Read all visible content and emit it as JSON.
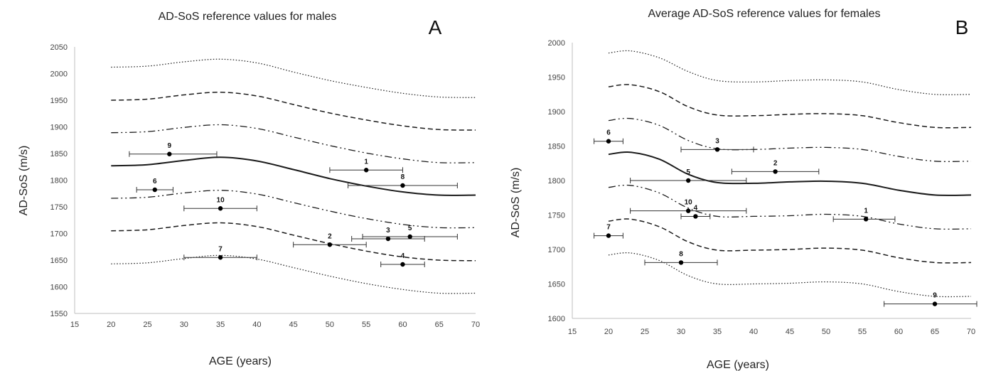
{
  "chart_data": [
    {
      "type": "line",
      "title": "AD-SoS reference values for males",
      "panel_letter": "A",
      "xlabel": "AGE (years)",
      "ylabel": "AD-SoS (m/s)",
      "xlim": [
        15,
        70
      ],
      "ylim": [
        1550,
        2050
      ],
      "xticks": [
        15,
        20,
        25,
        30,
        35,
        40,
        45,
        50,
        55,
        60,
        65,
        70
      ],
      "yticks": [
        1550,
        1600,
        1650,
        1700,
        1750,
        1800,
        1850,
        1900,
        1950,
        2000,
        2050
      ],
      "grid": false,
      "series": [
        {
          "style": "dotted",
          "x": [
            20,
            25,
            30,
            35,
            40,
            45,
            50,
            55,
            60,
            65,
            70
          ],
          "y": [
            2012,
            2014,
            2022,
            2027,
            2020,
            2003,
            1987,
            1974,
            1963,
            1956,
            1955
          ]
        },
        {
          "style": "dashed",
          "x": [
            20,
            25,
            30,
            35,
            40,
            45,
            50,
            55,
            60,
            65,
            70
          ],
          "y": [
            1950,
            1952,
            1960,
            1965,
            1958,
            1942,
            1926,
            1913,
            1902,
            1895,
            1894
          ]
        },
        {
          "style": "dashdotdot",
          "x": [
            20,
            25,
            30,
            35,
            40,
            45,
            50,
            55,
            60,
            65,
            70
          ],
          "y": [
            1889,
            1891,
            1899,
            1904,
            1897,
            1881,
            1865,
            1851,
            1840,
            1833,
            1833
          ]
        },
        {
          "style": "solid",
          "x": [
            20,
            25,
            30,
            35,
            40,
            45,
            50,
            55,
            60,
            65,
            70
          ],
          "y": [
            1827,
            1829,
            1837,
            1843,
            1836,
            1820,
            1803,
            1789,
            1778,
            1772,
            1772
          ]
        },
        {
          "style": "dashdotdot",
          "x": [
            20,
            25,
            30,
            35,
            40,
            45,
            50,
            55,
            60,
            65,
            70
          ],
          "y": [
            1766,
            1768,
            1776,
            1781,
            1774,
            1758,
            1742,
            1728,
            1717,
            1711,
            1711
          ]
        },
        {
          "style": "dashed",
          "x": [
            20,
            25,
            30,
            35,
            40,
            45,
            50,
            55,
            60,
            65,
            70
          ],
          "y": [
            1705,
            1707,
            1715,
            1720,
            1713,
            1697,
            1681,
            1667,
            1656,
            1650,
            1649
          ]
        },
        {
          "style": "dotted",
          "x": [
            20,
            25,
            30,
            35,
            40,
            45,
            50,
            55,
            60,
            65,
            70
          ],
          "y": [
            1643,
            1645,
            1653,
            1659,
            1652,
            1636,
            1620,
            1606,
            1595,
            1588,
            1588
          ]
        }
      ],
      "points": [
        {
          "label": "1",
          "x": 55,
          "y": 1819,
          "xerr": [
            50,
            60
          ]
        },
        {
          "label": "2",
          "x": 50,
          "y": 1679,
          "xerr": [
            45,
            55
          ]
        },
        {
          "label": "3",
          "x": 58,
          "y": 1690,
          "xerr": [
            53,
            63
          ]
        },
        {
          "label": "4",
          "x": 60,
          "y": 1642,
          "xerr": [
            57,
            63
          ]
        },
        {
          "label": "5",
          "x": 61,
          "y": 1694,
          "xerr": [
            54.5,
            67.5
          ]
        },
        {
          "label": "6",
          "x": 26,
          "y": 1782,
          "xerr": [
            23.5,
            28.5
          ]
        },
        {
          "label": "7",
          "x": 35,
          "y": 1655,
          "xerr": [
            30,
            40
          ]
        },
        {
          "label": "8",
          "x": 60,
          "y": 1790,
          "xerr": [
            52.5,
            67.5
          ]
        },
        {
          "label": "9",
          "x": 28,
          "y": 1849,
          "xerr": [
            22.5,
            34.5
          ]
        },
        {
          "label": "10",
          "x": 35,
          "y": 1747,
          "xerr": [
            30,
            40
          ]
        }
      ]
    },
    {
      "type": "line",
      "title": "Average AD-SoS reference values for females",
      "panel_letter": "B",
      "xlabel": "AGE (years)",
      "ylabel": "AD-SoS (m/s)",
      "xlim": [
        15,
        70
      ],
      "ylim": [
        1600,
        2000
      ],
      "xticks": [
        15,
        20,
        25,
        30,
        35,
        40,
        45,
        50,
        55,
        60,
        65,
        70
      ],
      "yticks": [
        1600,
        1650,
        1700,
        1750,
        1800,
        1850,
        1900,
        1950,
        2000
      ],
      "grid": false,
      "series": [
        {
          "style": "dotted",
          "x": [
            20,
            23,
            27,
            31,
            35,
            40,
            45,
            50,
            55,
            60,
            65,
            70
          ],
          "y": [
            1985,
            1988,
            1978,
            1958,
            1945,
            1943,
            1945,
            1946,
            1943,
            1932,
            1925,
            1925
          ]
        },
        {
          "style": "dashed",
          "x": [
            20,
            23,
            27,
            31,
            35,
            40,
            45,
            50,
            55,
            60,
            65,
            70
          ],
          "y": [
            1936,
            1939,
            1929,
            1907,
            1895,
            1894,
            1896,
            1897,
            1894,
            1884,
            1877,
            1877
          ]
        },
        {
          "style": "dashdotdot",
          "x": [
            20,
            23,
            27,
            31,
            35,
            40,
            45,
            50,
            55,
            60,
            65,
            70
          ],
          "y": [
            1887,
            1890,
            1880,
            1858,
            1846,
            1845,
            1847,
            1848,
            1845,
            1835,
            1828,
            1828
          ]
        },
        {
          "style": "solid",
          "x": [
            20,
            23,
            27,
            31,
            35,
            40,
            45,
            50,
            55,
            60,
            65,
            70
          ],
          "y": [
            1838,
            1841,
            1831,
            1809,
            1797,
            1796,
            1798,
            1799,
            1796,
            1786,
            1779,
            1779
          ]
        },
        {
          "style": "dashdotdot",
          "x": [
            20,
            23,
            27,
            31,
            35,
            40,
            45,
            50,
            55,
            60,
            65,
            70
          ],
          "y": [
            1790,
            1793,
            1782,
            1760,
            1748,
            1748,
            1749,
            1751,
            1748,
            1737,
            1730,
            1730
          ]
        },
        {
          "style": "dashed",
          "x": [
            20,
            23,
            27,
            31,
            35,
            40,
            45,
            50,
            55,
            60,
            65,
            70
          ],
          "y": [
            1741,
            1744,
            1733,
            1711,
            1699,
            1699,
            1700,
            1702,
            1699,
            1688,
            1681,
            1681
          ]
        },
        {
          "style": "dotted",
          "x": [
            20,
            23,
            27,
            31,
            35,
            40,
            45,
            50,
            55,
            60,
            65,
            70
          ],
          "y": [
            1692,
            1695,
            1684,
            1662,
            1650,
            1650,
            1651,
            1653,
            1650,
            1639,
            1632,
            1632
          ]
        }
      ],
      "points": [
        {
          "label": "1",
          "x": 55.5,
          "y": 1744,
          "xerr": [
            51,
            59.5
          ]
        },
        {
          "label": "2",
          "x": 43,
          "y": 1813,
          "xerr": [
            37,
            49
          ]
        },
        {
          "label": "3",
          "x": 35,
          "y": 1845,
          "xerr": [
            30,
            40
          ]
        },
        {
          "label": "4",
          "x": 32,
          "y": 1748,
          "xerr": [
            30,
            34
          ]
        },
        {
          "label": "5",
          "x": 31,
          "y": 1800,
          "xerr": [
            23,
            39
          ]
        },
        {
          "label": "6",
          "x": 20,
          "y": 1857,
          "xerr": [
            18,
            22
          ]
        },
        {
          "label": "7",
          "x": 20,
          "y": 1720,
          "xerr": [
            18,
            22
          ]
        },
        {
          "label": "8",
          "x": 30,
          "y": 1681,
          "xerr": [
            25,
            35
          ]
        },
        {
          "label": "9",
          "x": 65,
          "y": 1621,
          "xerr": [
            58,
            72
          ]
        },
        {
          "label": "10",
          "x": 31,
          "y": 1756,
          "xerr": [
            23,
            39
          ]
        }
      ]
    }
  ]
}
